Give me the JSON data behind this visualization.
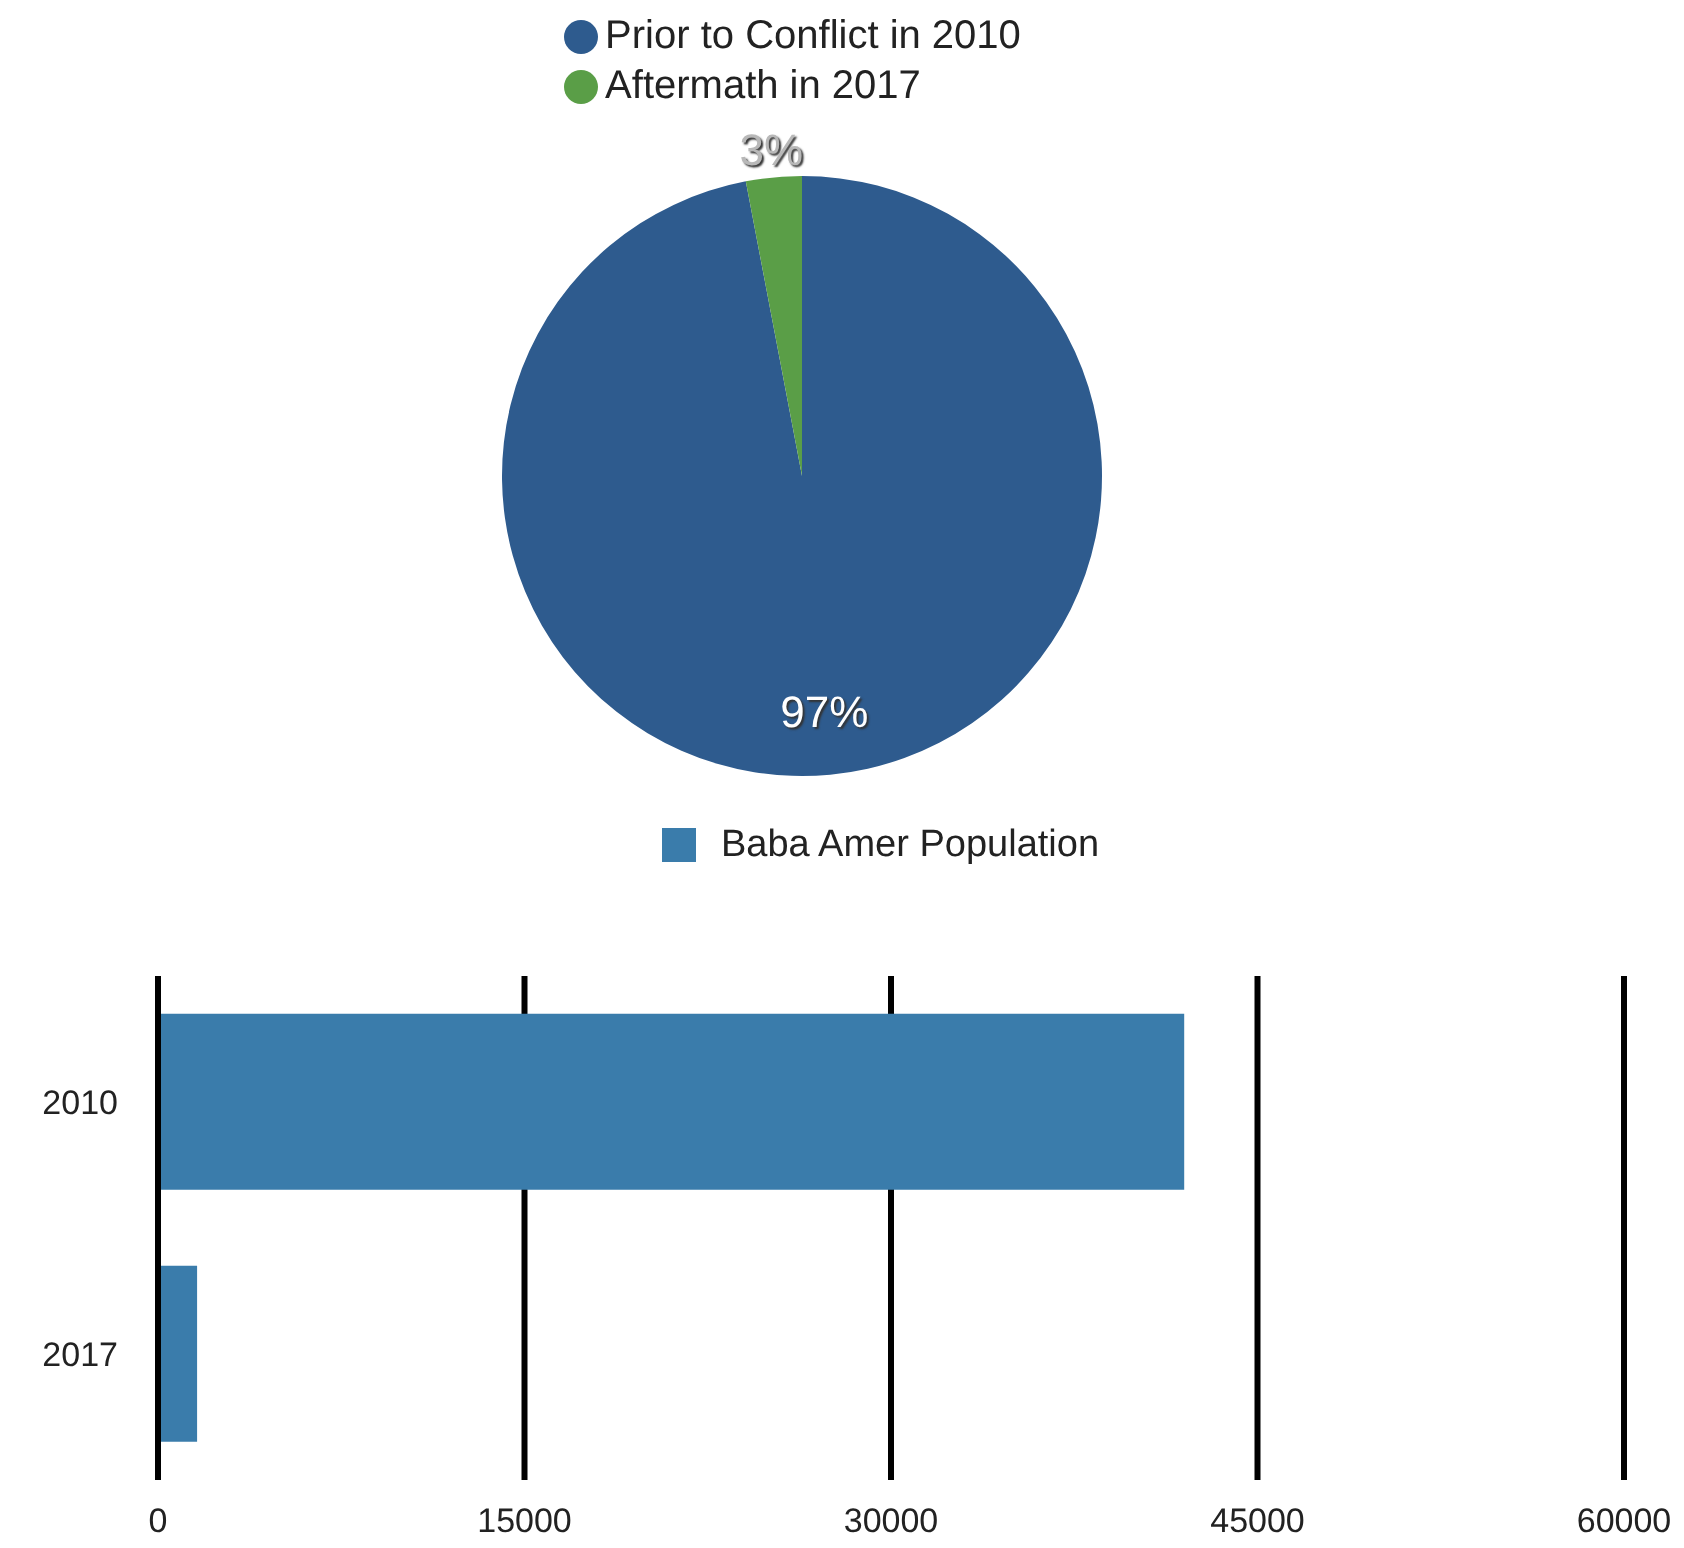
{
  "chart_data": [
    {
      "type": "pie",
      "categories": [
        "Prior to Conflict in 2010",
        "Aftermath in 2017"
      ],
      "values": [
        97,
        3
      ],
      "colors": [
        "#2e5b8e",
        "#5a9e47"
      ],
      "value_labels": [
        "97%",
        "3%"
      ],
      "legend": "top"
    },
    {
      "type": "bar",
      "orientation": "horizontal",
      "categories": [
        "2010",
        "2017"
      ],
      "series": [
        {
          "name": "Baba Amer Population",
          "color": "#3a7cab",
          "values": [
            42000,
            1600
          ]
        }
      ],
      "xlim": [
        0,
        60000
      ],
      "xticks": [
        0,
        15000,
        30000,
        45000,
        60000
      ],
      "grid": "x",
      "legend": "top"
    }
  ]
}
